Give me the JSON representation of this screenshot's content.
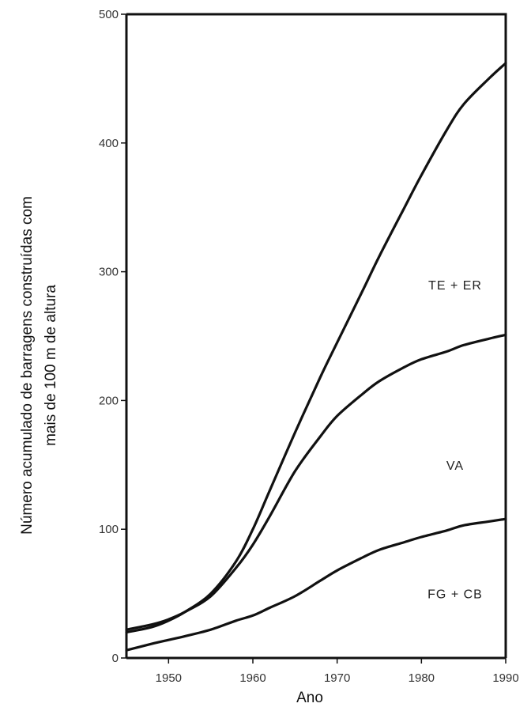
{
  "chart_data": {
    "type": "line",
    "title": "",
    "xlabel": "Ano",
    "ylabel_lines": [
      "Número acumulado de barragens construídas com",
      "mais de 100 m de altura"
    ],
    "xlim": [
      1945,
      1990
    ],
    "ylim": [
      0,
      500
    ],
    "x_ticks": [
      1950,
      1960,
      1970,
      1980,
      1990
    ],
    "x_tick_labels": [
      "1950",
      "1960",
      "1970",
      "1980",
      "1990"
    ],
    "y_ticks": [
      0,
      100,
      200,
      300,
      400,
      500
    ],
    "y_tick_labels": [
      "0",
      "100",
      "200",
      "300",
      "400",
      "500"
    ],
    "grid": false,
    "series": [
      {
        "x": [
          1945,
          1948,
          1950,
          1952,
          1955,
          1958,
          1960,
          1962,
          1965,
          1968,
          1970,
          1973,
          1975,
          1978,
          1980,
          1983,
          1985,
          1988,
          1990
        ],
        "y": [
          20,
          24,
          29,
          36,
          50,
          75,
          100,
          130,
          175,
          218,
          245,
          285,
          312,
          350,
          375,
          410,
          430,
          450,
          462
        ]
      },
      {
        "x": [
          1945,
          1948,
          1950,
          1952,
          1955,
          1958,
          1960,
          1962,
          1965,
          1968,
          1970,
          1973,
          1975,
          1978,
          1980,
          1983,
          1985,
          1988,
          1990
        ],
        "y": [
          22,
          26,
          30,
          36,
          48,
          70,
          88,
          110,
          145,
          172,
          188,
          205,
          215,
          226,
          232,
          238,
          243,
          248,
          251
        ]
      },
      {
        "x": [
          1945,
          1948,
          1950,
          1952,
          1955,
          1958,
          1960,
          1962,
          1965,
          1968,
          1970,
          1973,
          1975,
          1978,
          1980,
          1983,
          1985,
          1988,
          1990
        ],
        "y": [
          6,
          11,
          14,
          17,
          22,
          29,
          33,
          39,
          48,
          60,
          68,
          78,
          84,
          90,
          94,
          99,
          103,
          106,
          108
        ]
      }
    ],
    "region_labels": [
      {
        "text": "TE + ER",
        "x": 1984,
        "y": 290
      },
      {
        "text": "VA",
        "x": 1984,
        "y": 150
      },
      {
        "text": "FG + CB",
        "x": 1984,
        "y": 50
      }
    ]
  }
}
